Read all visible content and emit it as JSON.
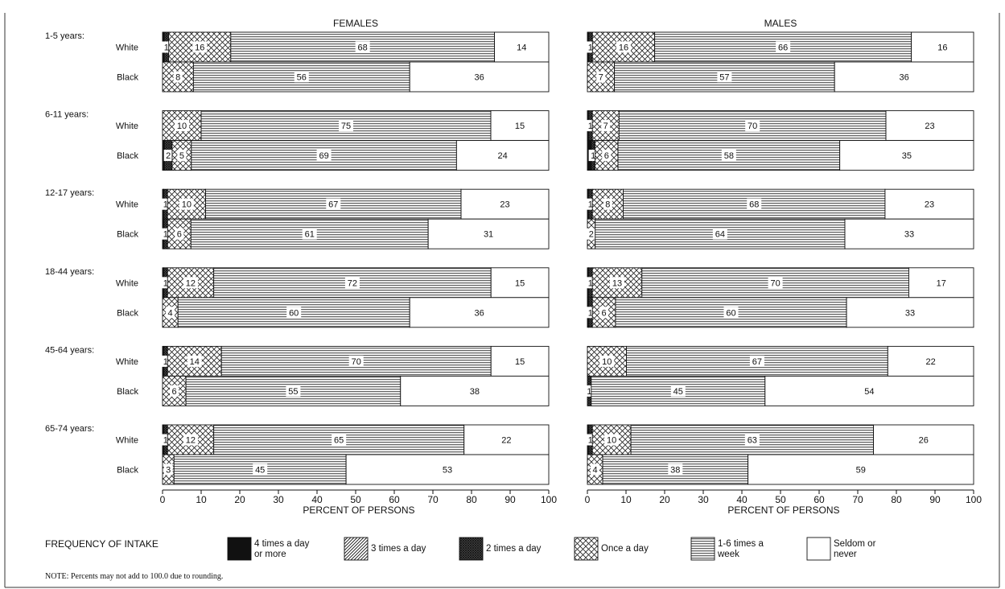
{
  "chart_data": {
    "type": "bar",
    "subtype": "stacked-horizontal-100",
    "xlabel": "PERCENT OF PERSONS",
    "xlim": [
      0,
      100
    ],
    "x_ticks": [
      "0",
      "10",
      "20",
      "30",
      "40",
      "50",
      "60",
      "70",
      "80",
      "90",
      "100"
    ],
    "legend_title": "FREQUENCY OF INTAKE",
    "legend_placement": "bottom",
    "categories": [
      {
        "key": "4x",
        "label": "4 times a day or more",
        "label_lines": [
          "4 times a day",
          "or more"
        ],
        "pattern": "solid"
      },
      {
        "key": "3x",
        "label": "3 times a day",
        "label_lines": [
          "3 times a day"
        ],
        "pattern": "diagonal"
      },
      {
        "key": "2x",
        "label": "2 times a day",
        "label_lines": [
          "2 times a day"
        ],
        "pattern": "dense-crosshatch"
      },
      {
        "key": "1x",
        "label": "Once a day",
        "label_lines": [
          "Once a day"
        ],
        "pattern": "crosshatch"
      },
      {
        "key": "wk",
        "label": "1-6 times a week",
        "label_lines": [
          "1-6 times a",
          "week"
        ],
        "pattern": "horizontal-lines"
      },
      {
        "key": "sn",
        "label": "Seldom or never",
        "label_lines": [
          "Seldom or",
          "never"
        ],
        "pattern": "blank"
      }
    ],
    "age_groups": [
      "1-5 years:",
      "6-11 years:",
      "12-17 years:",
      "18-44 years:",
      "45-64 years:",
      "65-74 years:"
    ],
    "races": [
      "White",
      "Black"
    ],
    "panels": [
      {
        "title": "FEMALES",
        "rows": [
          {
            "age": "1-5 years:",
            "race": "White",
            "values": [
              0.4,
              0,
              1.2,
              16,
              68,
              14
            ],
            "labels": [
              "",
              "",
              "1",
              "16",
              "68",
              "14"
            ]
          },
          {
            "age": "1-5 years:",
            "race": "Black",
            "values": [
              0,
              0,
              0,
              8,
              56,
              36
            ],
            "labels": [
              "",
              "",
              "",
              "8",
              "56",
              "36"
            ]
          },
          {
            "age": "6-11 years:",
            "race": "White",
            "values": [
              0,
              0,
              0,
              10,
              75,
              15
            ],
            "labels": [
              "",
              "",
              "",
              "10",
              "75",
              "15"
            ]
          },
          {
            "age": "6-11 years:",
            "race": "Black",
            "values": [
              0.5,
              0,
              2,
              5,
              69,
              24
            ],
            "labels": [
              "",
              "",
              "2",
              "5",
              "69",
              "24"
            ]
          },
          {
            "age": "12-17 years:",
            "race": "White",
            "values": [
              0.3,
              0,
              1,
              10,
              67,
              23
            ],
            "labels": [
              "",
              "",
              "1",
              "10",
              "67",
              "23"
            ]
          },
          {
            "age": "12-17 years:",
            "race": "Black",
            "values": [
              0.3,
              0,
              1,
              6,
              61,
              31
            ],
            "labels": [
              "",
              "",
              "1",
              "6",
              "61",
              "31"
            ]
          },
          {
            "age": "18-44 years:",
            "race": "White",
            "values": [
              0.3,
              0,
              1,
              12,
              72,
              15
            ],
            "labels": [
              "",
              "",
              "1",
              "12",
              "72",
              "15"
            ]
          },
          {
            "age": "18-44 years:",
            "race": "Black",
            "values": [
              0,
              0,
              0,
              4,
              60,
              36
            ],
            "labels": [
              "",
              "",
              "",
              "4",
              "60",
              "36"
            ]
          },
          {
            "age": "45-64 years:",
            "race": "White",
            "values": [
              0.3,
              0,
              1,
              14,
              70,
              15
            ],
            "labels": [
              "",
              "",
              "1",
              "14",
              "70",
              "15"
            ]
          },
          {
            "age": "45-64 years:",
            "race": "Black",
            "values": [
              0,
              0,
              0,
              6,
              55,
              38
            ],
            "labels": [
              "",
              "",
              "",
              "6",
              "55",
              "38"
            ]
          },
          {
            "age": "65-74 years:",
            "race": "White",
            "values": [
              0.3,
              0,
              1,
              12,
              65,
              22
            ],
            "labels": [
              "",
              "",
              "1",
              "12",
              "65",
              "22"
            ]
          },
          {
            "age": "65-74 years:",
            "race": "Black",
            "values": [
              0,
              0,
              0,
              3,
              45,
              53
            ],
            "labels": [
              "",
              "",
              "",
              "3",
              "45",
              "53"
            ]
          }
        ]
      },
      {
        "title": "MALES",
        "rows": [
          {
            "age": "1-5 years:",
            "race": "White",
            "values": [
              0.3,
              0,
              1,
              16,
              66,
              16
            ],
            "labels": [
              "",
              "",
              "1",
              "16",
              "66",
              "16"
            ]
          },
          {
            "age": "1-5 years:",
            "race": "Black",
            "values": [
              0,
              0,
              0,
              7,
              57,
              36
            ],
            "labels": [
              "",
              "",
              "",
              "7",
              "57",
              "36"
            ]
          },
          {
            "age": "6-11 years:",
            "race": "White",
            "values": [
              0.3,
              0,
              1,
              7,
              70,
              23
            ],
            "labels": [
              "",
              "",
              "1",
              "7",
              "70",
              "23"
            ]
          },
          {
            "age": "6-11 years:",
            "race": "Black",
            "values": [
              1,
              0,
              1,
              6,
              58,
              35
            ],
            "labels": [
              "",
              "",
              "1",
              "6",
              "58",
              "35"
            ]
          },
          {
            "age": "12-17 years:",
            "race": "White",
            "values": [
              0.3,
              0,
              1,
              8,
              68,
              23
            ],
            "labels": [
              "",
              "",
              "1",
              "8",
              "68",
              "23"
            ]
          },
          {
            "age": "12-17 years:",
            "race": "Black",
            "values": [
              0,
              0,
              0,
              2,
              64,
              33
            ],
            "labels": [
              "",
              "",
              "",
              "2",
              "64",
              "33"
            ]
          },
          {
            "age": "18-44 years:",
            "race": "White",
            "values": [
              0.3,
              0,
              1,
              13,
              70,
              17
            ],
            "labels": [
              "",
              "",
              "1",
              "13",
              "70",
              "17"
            ]
          },
          {
            "age": "18-44 years:",
            "race": "Black",
            "values": [
              0.3,
              0,
              1,
              6,
              60,
              33
            ],
            "labels": [
              "",
              "",
              "1",
              "6",
              "60",
              "33"
            ]
          },
          {
            "age": "45-64 years:",
            "race": "White",
            "values": [
              0,
              0,
              0,
              10,
              67,
              22
            ],
            "labels": [
              "",
              "",
              "",
              "10",
              "67",
              "22"
            ]
          },
          {
            "age": "45-64 years:",
            "race": "Black",
            "values": [
              0,
              0,
              1,
              0,
              45,
              54
            ],
            "labels": [
              "",
              "",
              "1",
              "",
              "45",
              "54"
            ]
          },
          {
            "age": "65-74 years:",
            "race": "White",
            "values": [
              0.3,
              0,
              1,
              10,
              63,
              26
            ],
            "labels": [
              "",
              "",
              "1",
              "10",
              "63",
              "26"
            ]
          },
          {
            "age": "65-74 years:",
            "race": "Black",
            "values": [
              0,
              0,
              0,
              4,
              38,
              59
            ],
            "labels": [
              "",
              "",
              "",
              "4",
              "38",
              "59"
            ]
          }
        ]
      }
    ],
    "note": "NOTE: Percents may not add to 100.0 due to rounding."
  }
}
